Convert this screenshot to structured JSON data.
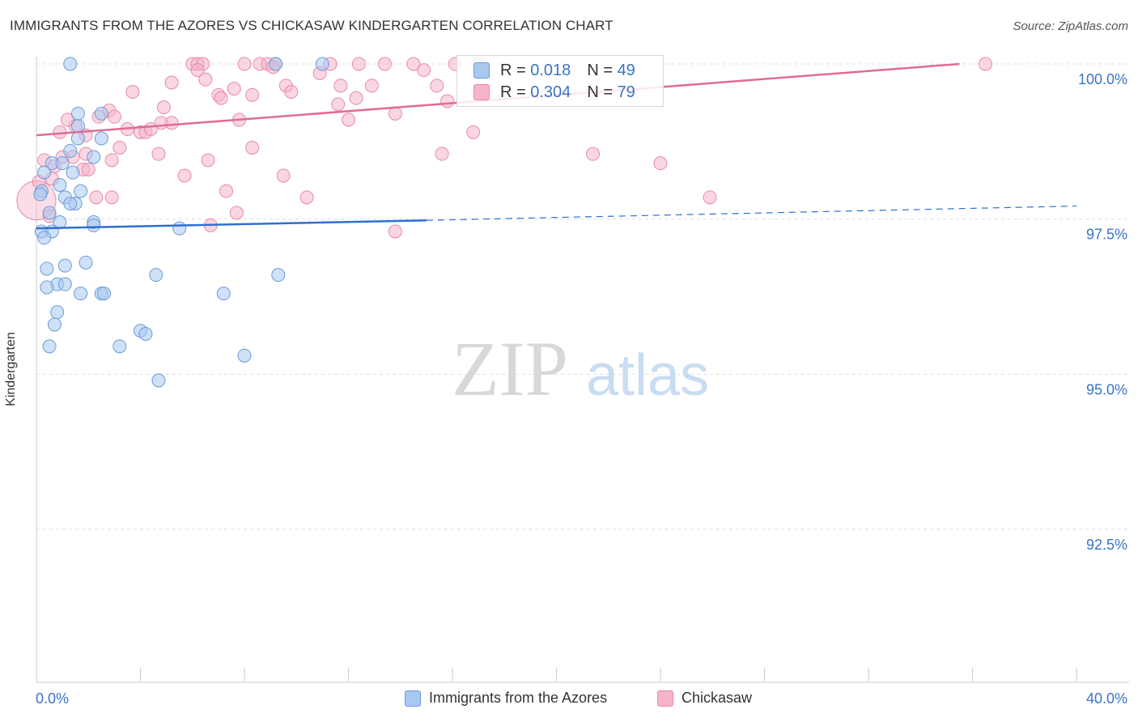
{
  "header": {
    "title": "IMMIGRANTS FROM THE AZORES VS CHICKASAW KINDERGARTEN CORRELATION CHART",
    "source": "Source: ZipAtlas.com"
  },
  "watermark": {
    "zip": "ZIP",
    "atlas": "atlas"
  },
  "legend": {
    "r_label": "R =",
    "n_label": "N =",
    "rows": [
      {
        "r": "0.018",
        "n": "49",
        "color": "#a8c8f0"
      },
      {
        "r": "0.304",
        "n": "79",
        "color": "#f5b4c8"
      }
    ]
  },
  "colors": {
    "blue_fill": "#a8c8f0",
    "blue_stroke": "#6a9bd8",
    "blue_line": "#2f6fcf",
    "pink_fill": "#f5b4c8",
    "pink_stroke": "#e88aa8",
    "pink_line": "#e06b93",
    "tick_label": "#3a74c7",
    "grid": "#dddddd"
  },
  "chart_data": {
    "type": "scatter",
    "title": "IMMIGRANTS FROM THE AZORES VS CHICKASAW KINDERGARTEN CORRELATION CHART",
    "xlabel": "",
    "ylabel": "Kindergarten",
    "xlim": [
      0,
      40
    ],
    "ylim": [
      90,
      100.25
    ],
    "x_tick_labels": [
      "0.0%",
      "40.0%"
    ],
    "y_ticks": [
      100,
      97.5,
      95,
      92.5
    ],
    "y_tick_labels": [
      "100.0%",
      "97.5%",
      "95.0%",
      "92.5%"
    ],
    "grid": true,
    "legend_position": "top-center",
    "series": [
      {
        "name": "Immigrants from the Azores",
        "r": 0.018,
        "n": 49,
        "trend": {
          "x": [
            0,
            15,
            40
          ],
          "y": [
            97.35,
            97.48,
            97.71
          ],
          "solid_until": 15
        },
        "points": [
          [
            1.3,
            100.0
          ],
          [
            9.2,
            100.0
          ],
          [
            11.0,
            100.0
          ],
          [
            1.6,
            99.2
          ],
          [
            2.5,
            99.2
          ],
          [
            1.6,
            99.0
          ],
          [
            1.6,
            98.8
          ],
          [
            2.5,
            98.8
          ],
          [
            1.3,
            98.6
          ],
          [
            2.2,
            98.5
          ],
          [
            0.6,
            98.4
          ],
          [
            1.0,
            98.4
          ],
          [
            0.3,
            98.25
          ],
          [
            1.4,
            98.25
          ],
          [
            0.9,
            98.05
          ],
          [
            1.7,
            97.95
          ],
          [
            0.2,
            97.95
          ],
          [
            1.1,
            97.85
          ],
          [
            1.5,
            97.75
          ],
          [
            1.3,
            97.75
          ],
          [
            0.5,
            97.6
          ],
          [
            0.9,
            97.45
          ],
          [
            2.2,
            97.45
          ],
          [
            2.2,
            97.4
          ],
          [
            5.5,
            97.35
          ],
          [
            0.2,
            97.3
          ],
          [
            0.6,
            97.3
          ],
          [
            0.3,
            97.2
          ],
          [
            1.9,
            96.8
          ],
          [
            1.1,
            96.75
          ],
          [
            0.4,
            96.7
          ],
          [
            4.6,
            96.6
          ],
          [
            9.3,
            96.6
          ],
          [
            0.8,
            96.45
          ],
          [
            1.1,
            96.45
          ],
          [
            0.4,
            96.4
          ],
          [
            1.7,
            96.3
          ],
          [
            2.5,
            96.3
          ],
          [
            2.6,
            96.3
          ],
          [
            7.2,
            96.3
          ],
          [
            0.8,
            96.0
          ],
          [
            0.7,
            95.8
          ],
          [
            4.0,
            95.7
          ],
          [
            4.2,
            95.65
          ],
          [
            0.5,
            95.45
          ],
          [
            3.2,
            95.45
          ],
          [
            8.0,
            95.3
          ],
          [
            4.7,
            94.9
          ],
          [
            0.15,
            97.9
          ]
        ]
      },
      {
        "name": "Chickasaw",
        "r": 0.304,
        "n": 79,
        "trend": {
          "x": [
            0,
            35.5
          ],
          "y": [
            98.85,
            100.0
          ]
        },
        "points": [
          [
            0.0,
            97.8
          ],
          [
            6.0,
            100.0
          ],
          [
            6.2,
            100.0
          ],
          [
            6.4,
            100.0
          ],
          [
            8.0,
            100.0
          ],
          [
            8.6,
            100.0
          ],
          [
            8.9,
            100.0
          ],
          [
            9.2,
            100.0
          ],
          [
            11.3,
            100.0
          ],
          [
            12.4,
            100.0
          ],
          [
            14.5,
            100.0
          ],
          [
            16.1,
            100.0
          ],
          [
            36.5,
            100.0
          ],
          [
            9.1,
            99.95
          ],
          [
            6.2,
            99.9
          ],
          [
            10.9,
            99.85
          ],
          [
            6.5,
            99.75
          ],
          [
            5.2,
            99.7
          ],
          [
            11.7,
            99.65
          ],
          [
            9.6,
            99.65
          ],
          [
            12.9,
            99.65
          ],
          [
            15.4,
            99.65
          ],
          [
            7.6,
            99.6
          ],
          [
            3.7,
            99.55
          ],
          [
            9.8,
            99.55
          ],
          [
            7.0,
            99.5
          ],
          [
            8.3,
            99.5
          ],
          [
            7.1,
            99.45
          ],
          [
            12.3,
            99.45
          ],
          [
            15.8,
            99.4
          ],
          [
            4.9,
            99.3
          ],
          [
            2.8,
            99.25
          ],
          [
            13.8,
            99.2
          ],
          [
            2.4,
            99.15
          ],
          [
            7.8,
            99.1
          ],
          [
            12.0,
            99.1
          ],
          [
            5.2,
            99.05
          ],
          [
            1.5,
            99.0
          ],
          [
            3.5,
            98.95
          ],
          [
            4.0,
            98.9
          ],
          [
            4.2,
            98.9
          ],
          [
            4.4,
            98.95
          ],
          [
            16.8,
            98.9
          ],
          [
            1.9,
            98.85
          ],
          [
            0.9,
            98.9
          ],
          [
            3.2,
            98.65
          ],
          [
            8.3,
            98.65
          ],
          [
            4.7,
            98.55
          ],
          [
            15.6,
            98.55
          ],
          [
            21.4,
            98.55
          ],
          [
            1.0,
            98.5
          ],
          [
            1.4,
            98.5
          ],
          [
            0.3,
            98.45
          ],
          [
            2.9,
            98.45
          ],
          [
            6.6,
            98.45
          ],
          [
            24.0,
            98.4
          ],
          [
            0.7,
            98.35
          ],
          [
            1.8,
            98.3
          ],
          [
            5.7,
            98.2
          ],
          [
            9.5,
            98.2
          ],
          [
            0.6,
            98.15
          ],
          [
            7.3,
            97.95
          ],
          [
            2.3,
            97.85
          ],
          [
            2.9,
            97.85
          ],
          [
            10.4,
            97.85
          ],
          [
            25.9,
            97.85
          ],
          [
            7.7,
            97.6
          ],
          [
            0.5,
            97.55
          ],
          [
            6.7,
            97.4
          ],
          [
            13.8,
            97.3
          ],
          [
            0.1,
            98.1
          ],
          [
            1.2,
            99.1
          ],
          [
            4.8,
            99.05
          ],
          [
            3.0,
            99.15
          ],
          [
            1.9,
            98.55
          ],
          [
            17.0,
            100.0
          ],
          [
            13.4,
            100.0
          ],
          [
            14.9,
            99.9
          ],
          [
            11.6,
            99.35
          ],
          [
            2.0,
            98.3
          ]
        ]
      }
    ]
  },
  "bottom_legend": [
    {
      "label": "Immigrants from the Azores"
    },
    {
      "label": "Chickasaw"
    }
  ]
}
